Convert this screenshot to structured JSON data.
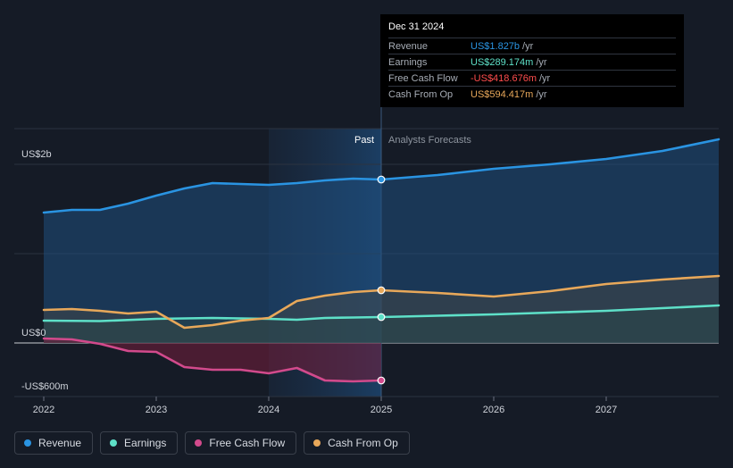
{
  "colors": {
    "revenue": "#2a94e2",
    "earnings": "#5ee0c8",
    "fcf": "#d24a8c",
    "cfo": "#e8a85a",
    "background": "#151b26"
  },
  "tooltip": {
    "date": "Dec 31 2024",
    "rows": [
      {
        "label": "Revenue",
        "value": "US$1.827b",
        "unit": "/yr",
        "color": "#2a94e2"
      },
      {
        "label": "Earnings",
        "value": "US$289.174m",
        "unit": "/yr",
        "color": "#5ee0c8"
      },
      {
        "label": "Free Cash Flow",
        "value": "-US$418.676m",
        "unit": "/yr",
        "color": "#ff4d4d"
      },
      {
        "label": "Cash From Op",
        "value": "US$594.417m",
        "unit": "/yr",
        "color": "#e8a85a"
      }
    ]
  },
  "legend": [
    {
      "label": "Revenue",
      "color": "#2a94e2"
    },
    {
      "label": "Earnings",
      "color": "#5ee0c8"
    },
    {
      "label": "Free Cash Flow",
      "color": "#d24a8c"
    },
    {
      "label": "Cash From Op",
      "color": "#e8a85a"
    }
  ],
  "chart_data": {
    "type": "line",
    "title": "",
    "past_label": "Past",
    "forecast_label": "Analysts Forecasts",
    "y_tick_labels": [
      {
        "value": 2.0,
        "label": "US$2b"
      },
      {
        "value": 0,
        "label": "US$0"
      },
      {
        "value": -0.6,
        "label": "-US$600m"
      }
    ],
    "ylim": [
      -0.6,
      2.4
    ],
    "xlim": [
      2022.0,
      2028.0
    ],
    "x_ticks": [
      2022,
      2023,
      2024,
      2025,
      2026,
      2027
    ],
    "x_tick_labels": [
      "2022",
      "2023",
      "2024",
      "2025",
      "2026",
      "2027"
    ],
    "divider_x": 2025.0,
    "highlight_start": 2024.0,
    "y_units": "US$ billions",
    "series": [
      {
        "name": "Revenue",
        "key": "revenue",
        "points": [
          [
            2022.0,
            1.46
          ],
          [
            2022.25,
            1.49
          ],
          [
            2022.5,
            1.49
          ],
          [
            2022.75,
            1.56
          ],
          [
            2023.0,
            1.65
          ],
          [
            2023.25,
            1.73
          ],
          [
            2023.5,
            1.79
          ],
          [
            2023.75,
            1.78
          ],
          [
            2024.0,
            1.77
          ],
          [
            2024.25,
            1.79
          ],
          [
            2024.5,
            1.82
          ],
          [
            2024.75,
            1.84
          ],
          [
            2025.0,
            1.83
          ],
          [
            2025.5,
            1.88
          ],
          [
            2026.0,
            1.95
          ],
          [
            2026.5,
            2.0
          ],
          [
            2027.0,
            2.06
          ],
          [
            2027.5,
            2.15
          ],
          [
            2028.0,
            2.28
          ]
        ]
      },
      {
        "name": "Earnings",
        "key": "earnings",
        "points": [
          [
            2022.0,
            0.25
          ],
          [
            2022.5,
            0.245
          ],
          [
            2023.0,
            0.27
          ],
          [
            2023.5,
            0.28
          ],
          [
            2024.0,
            0.27
          ],
          [
            2024.25,
            0.26
          ],
          [
            2024.5,
            0.28
          ],
          [
            2024.75,
            0.285
          ],
          [
            2025.0,
            0.29
          ],
          [
            2025.5,
            0.305
          ],
          [
            2026.0,
            0.32
          ],
          [
            2026.5,
            0.34
          ],
          [
            2027.0,
            0.36
          ],
          [
            2027.5,
            0.39
          ],
          [
            2028.0,
            0.42
          ]
        ]
      },
      {
        "name": "Free Cash Flow",
        "key": "fcf",
        "points": [
          [
            2022.0,
            0.05
          ],
          [
            2022.25,
            0.04
          ],
          [
            2022.5,
            -0.01
          ],
          [
            2022.75,
            -0.09
          ],
          [
            2023.0,
            -0.1
          ],
          [
            2023.25,
            -0.27
          ],
          [
            2023.5,
            -0.3
          ],
          [
            2023.75,
            -0.3
          ],
          [
            2024.0,
            -0.34
          ],
          [
            2024.25,
            -0.28
          ],
          [
            2024.5,
            -0.42
          ],
          [
            2024.75,
            -0.43
          ],
          [
            2025.0,
            -0.42
          ]
        ]
      },
      {
        "name": "Cash From Op",
        "key": "cfo",
        "points": [
          [
            2022.0,
            0.37
          ],
          [
            2022.25,
            0.38
          ],
          [
            2022.5,
            0.36
          ],
          [
            2022.75,
            0.33
          ],
          [
            2023.0,
            0.35
          ],
          [
            2023.25,
            0.17
          ],
          [
            2023.5,
            0.2
          ],
          [
            2023.75,
            0.25
          ],
          [
            2024.0,
            0.28
          ],
          [
            2024.25,
            0.47
          ],
          [
            2024.5,
            0.53
          ],
          [
            2024.75,
            0.57
          ],
          [
            2025.0,
            0.59
          ],
          [
            2025.5,
            0.56
          ],
          [
            2026.0,
            0.52
          ],
          [
            2026.5,
            0.58
          ],
          [
            2027.0,
            0.66
          ],
          [
            2027.5,
            0.71
          ],
          [
            2028.0,
            0.75
          ]
        ]
      }
    ]
  }
}
